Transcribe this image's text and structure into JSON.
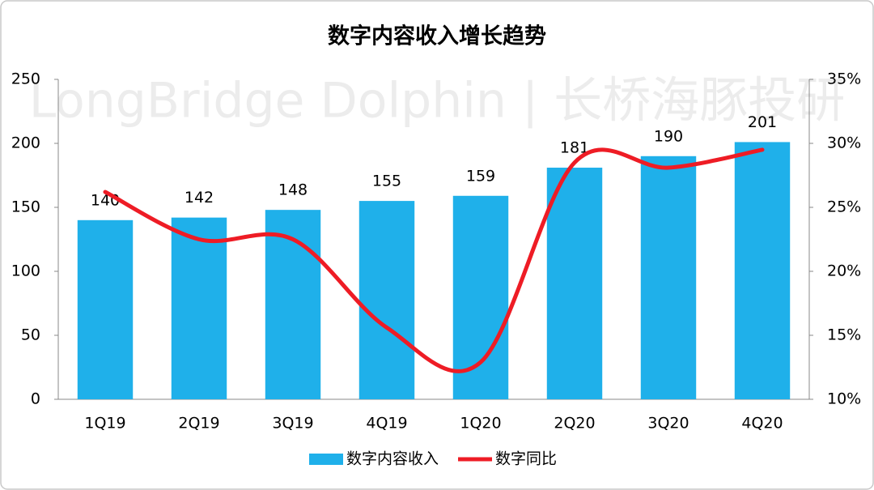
{
  "chart_data": {
    "type": "combo",
    "title": "数字内容收入增长趋势",
    "watermark": "LongBridge Dolphin | 长桥海豚投研",
    "categories": [
      "1Q19",
      "2Q19",
      "3Q19",
      "4Q19",
      "1Q20",
      "2Q20",
      "3Q20",
      "4Q20"
    ],
    "series": [
      {
        "name": "数字内容收入",
        "type": "bar",
        "color": "#1fb0ea",
        "values": [
          140,
          142,
          148,
          155,
          159,
          181,
          190,
          201
        ],
        "show_labels": true
      },
      {
        "name": "数字同比",
        "type": "line",
        "axis": "y2",
        "color": "#ee1c25",
        "values": [
          26.2,
          22.5,
          22.5,
          15.6,
          12.9,
          28.5,
          28.1,
          29.5
        ]
      }
    ],
    "ylim": [
      0,
      250
    ],
    "yticks": [
      0,
      50,
      100,
      150,
      200,
      250
    ],
    "y2lim": [
      10,
      35
    ],
    "y2ticks": [
      {
        "value": 10,
        "label": "10%"
      },
      {
        "value": 15,
        "label": "15%"
      },
      {
        "value": 20,
        "label": "20%"
      },
      {
        "value": 25,
        "label": "25%"
      },
      {
        "value": 30,
        "label": "30%"
      },
      {
        "value": 35,
        "label": "35%"
      }
    ],
    "grid": false,
    "legend": "bottom"
  }
}
